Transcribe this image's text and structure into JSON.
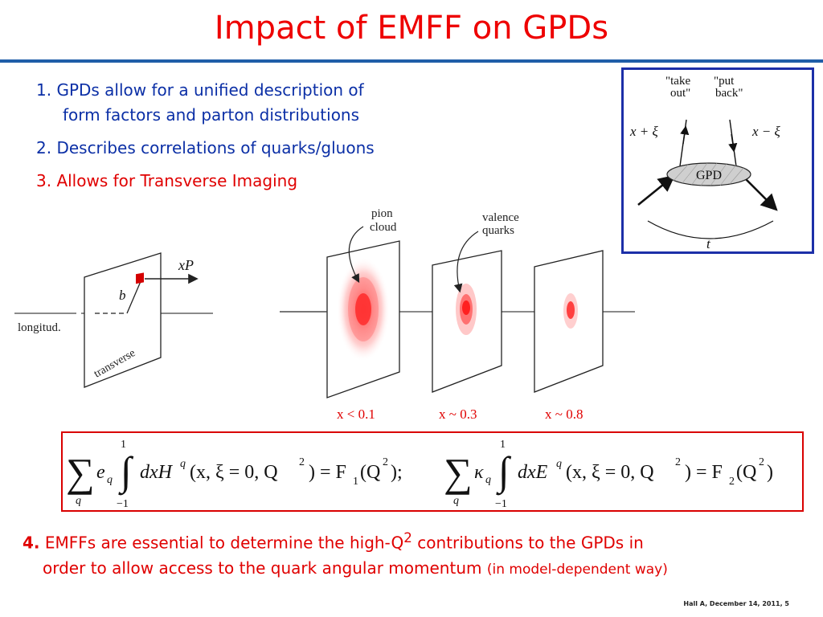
{
  "title": "Impact of EMFF on GPDs",
  "points": {
    "p1_line1": "1. GPDs allow for a unified description of",
    "p1_line2": "form factors and parton distributions",
    "p2": "2. Describes correlations of quarks/gluons",
    "p3": "3. Allows for Transverse Imaging",
    "p4_num": "4.",
    "p4_text_a": "EMFFs are essential to determine the high-Q",
    "p4_sup": "2",
    "p4_text_b": " contributions to the GPDs in",
    "p4_line2": "order to allow access to the quark angular momentum ",
    "p4_paren": "(in model-dependent way)"
  },
  "gpd_diagram": {
    "take_out_1": "\"take",
    "take_out_2": "out\"",
    "put_back_1": "\"put",
    "put_back_2": "back\"",
    "left_label": "x + ξ",
    "right_label": "x − ξ",
    "blob_label": "GPD",
    "t_label": "t"
  },
  "imaging": {
    "xP": "xP",
    "b": "b",
    "longitud": "longitud.",
    "transverse": "transverse",
    "pion_1": "pion",
    "pion_2": "cloud",
    "valence_1": "valence",
    "valence_2": "quarks"
  },
  "x_labels": [
    "x < 0.1",
    "x ~ 0.3",
    "x ~ 0.8"
  ],
  "formula": {
    "lim_top": "1",
    "lim_bot": "−1",
    "sum_idx": "q",
    "left": "dxH",
    "left_sup": "q",
    "args": "(x, ξ = 0, Q",
    "args_sup": "2",
    "args_end": ") = F",
    "f1_sub": "1",
    "f_arg": "(Q",
    "f_arg_end": ");",
    "e_sym": "e",
    "kappa_sym": "κ",
    "right": "dxE",
    "f2_sub": "2",
    "f2_arg_end": ")"
  },
  "footer": "Hall A, December 14, 2011, 5"
}
